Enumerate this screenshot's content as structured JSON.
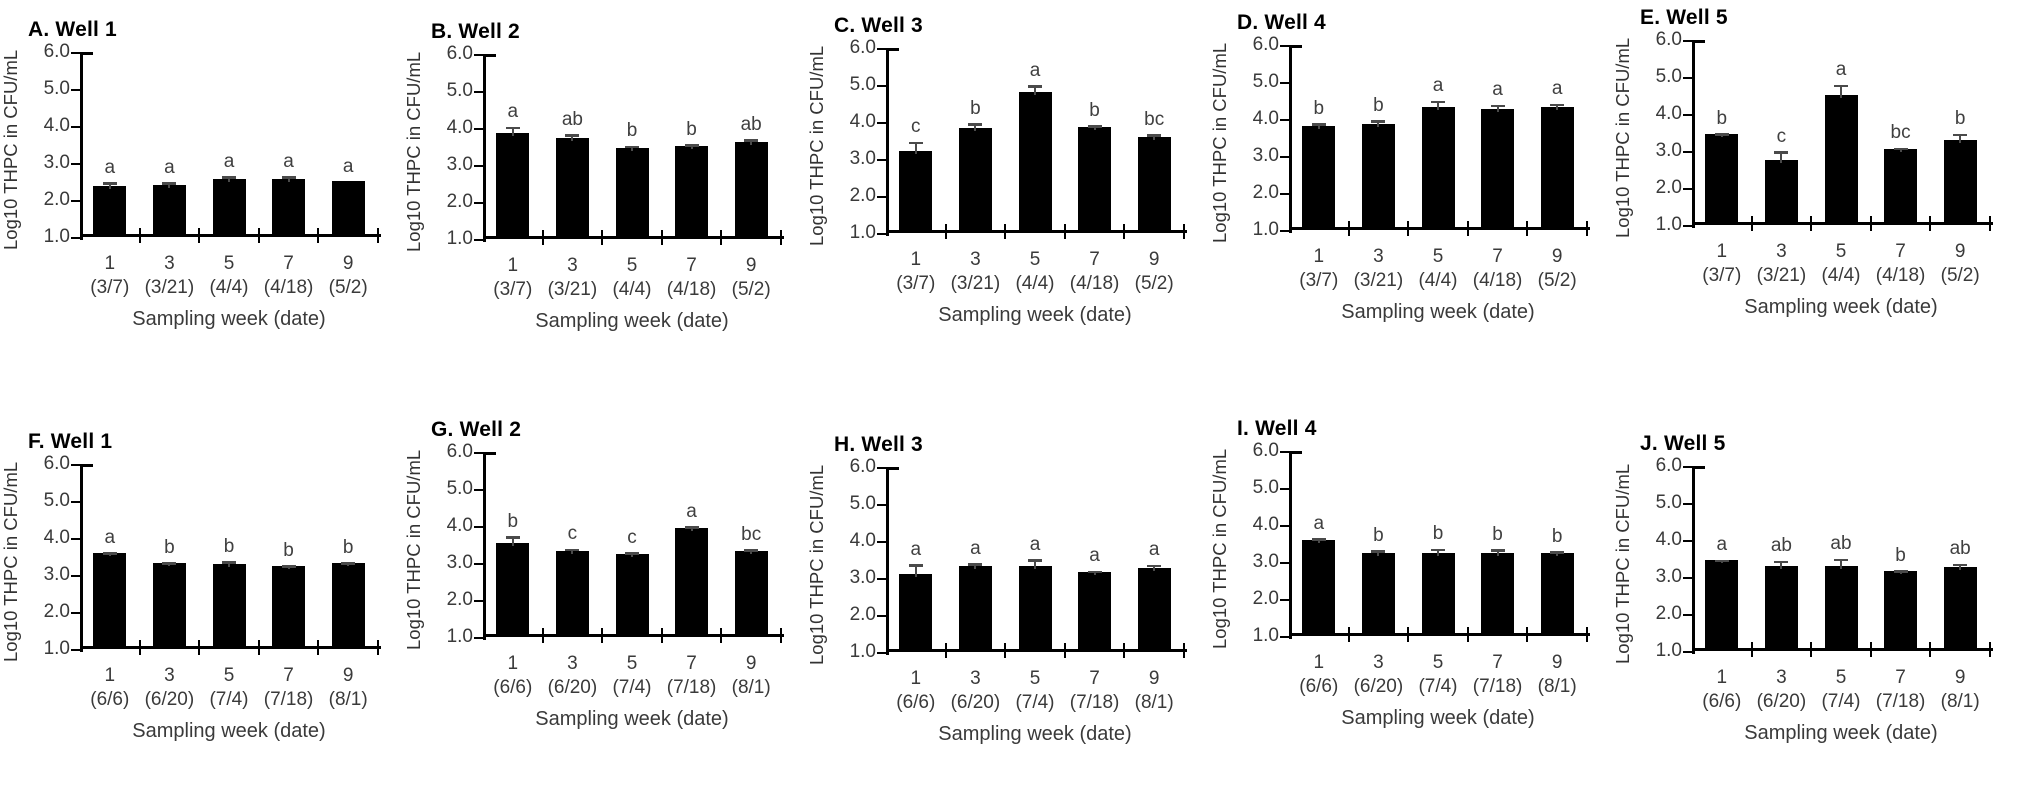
{
  "figure": {
    "description_colors": {
      "bar": "#000000",
      "error_bar": "#4a4a4a",
      "axis": "#000000",
      "text": "#3a3a3a",
      "title": "#000000",
      "background": "#ffffff"
    }
  },
  "axes": {
    "ylabel": "Log10 THPC in CFU/mL",
    "xlabel": "Sampling week (date)",
    "ytick_labels": [
      "6.0",
      "5.0",
      "4.0",
      "3.0",
      "2.0",
      "1.0"
    ],
    "ylim": [
      1.0,
      6.0
    ]
  },
  "chart_data": [
    {
      "panel": "A",
      "type": "bar",
      "title": "A. Well 1",
      "categories": [
        "1",
        "3",
        "5",
        "7",
        "9"
      ],
      "date_labels": [
        "(3/7)",
        "(3/21)",
        "(4/4)",
        "(4/18)",
        "(5/2)"
      ],
      "values": [
        2.32,
        2.36,
        2.52,
        2.52,
        2.45
      ],
      "errors": [
        0.12,
        0.08,
        0.08,
        0.08,
        0
      ],
      "sig_letters": [
        "a",
        "a",
        "a",
        "a",
        "a"
      ],
      "ylabel": "Log10 THPC in CFU/mL",
      "xlabel": "Sampling week (date)",
      "ytick_labels": [
        "6.0",
        "5.0",
        "4.0",
        "3.0",
        "2.0",
        "1.0"
      ],
      "ylim": [
        1.0,
        6.0
      ]
    },
    {
      "panel": "B",
      "type": "bar",
      "title": "B. Well 2",
      "categories": [
        "1",
        "3",
        "5",
        "7",
        "9"
      ],
      "date_labels": [
        "(3/7)",
        "(3/21)",
        "(4/4)",
        "(4/18)",
        "(5/2)"
      ],
      "values": [
        3.8,
        3.67,
        3.4,
        3.45,
        3.58
      ],
      "errors": [
        0.2,
        0.12,
        0.08,
        0.07,
        0.08
      ],
      "sig_letters": [
        "a",
        "ab",
        "b",
        "b",
        "ab"
      ],
      "ylabel": "Log10 THPC in CFU/mL",
      "xlabel": "Sampling week (date)",
      "ytick_labels": [
        "6.0",
        "5.0",
        "4.0",
        "3.0",
        "2.0",
        "1.0"
      ],
      "ylim": [
        1.0,
        6.0
      ]
    },
    {
      "panel": "C",
      "type": "bar",
      "title": "C. Well 3",
      "categories": [
        "1",
        "3",
        "5",
        "7",
        "9"
      ],
      "date_labels": [
        "(3/7)",
        "(3/21)",
        "(4/4)",
        "(4/18)",
        "(5/2)"
      ],
      "values": [
        3.17,
        3.78,
        4.75,
        3.82,
        3.55
      ],
      "errors": [
        0.25,
        0.15,
        0.2,
        0.05,
        0.08
      ],
      "sig_letters": [
        "c",
        "b",
        "a",
        "b",
        "bc"
      ],
      "ylabel": "Log10 THPC in CFU/mL",
      "xlabel": "Sampling week (date)",
      "ytick_labels": [
        "6.0",
        "5.0",
        "4.0",
        "3.0",
        "2.0",
        "1.0"
      ],
      "ylim": [
        1.0,
        6.0
      ]
    },
    {
      "panel": "D",
      "type": "bar",
      "title": "D. Well 4",
      "categories": [
        "1",
        "3",
        "5",
        "7",
        "9"
      ],
      "date_labels": [
        "(3/7)",
        "(3/21)",
        "(4/4)",
        "(4/18)",
        "(5/2)"
      ],
      "values": [
        3.75,
        3.82,
        4.27,
        4.23,
        4.27
      ],
      "errors": [
        0.1,
        0.1,
        0.18,
        0.12,
        0.1
      ],
      "sig_letters": [
        "b",
        "b",
        "a",
        "a",
        "a"
      ],
      "ylabel": "Log10 THPC in CFU/mL",
      "xlabel": "Sampling week (date)",
      "ytick_labels": [
        "6.0",
        "5.0",
        "4.0",
        "3.0",
        "2.0",
        "1.0"
      ],
      "ylim": [
        1.0,
        6.0
      ]
    },
    {
      "panel": "E",
      "type": "bar",
      "title": "E. Well 5",
      "categories": [
        "1",
        "3",
        "5",
        "7",
        "9"
      ],
      "date_labels": [
        "(3/7)",
        "(3/21)",
        "(4/4)",
        "(4/18)",
        "(5/2)"
      ],
      "values": [
        3.4,
        2.7,
        4.45,
        3.0,
        3.25
      ],
      "errors": [
        0.04,
        0.25,
        0.3,
        0.05,
        0.18
      ],
      "sig_letters": [
        "b",
        "c",
        "a",
        "bc",
        "b"
      ],
      "ylabel": "Log10 THPC in CFU/mL",
      "xlabel": "Sampling week (date)",
      "ytick_labels": [
        "6.0",
        "5.0",
        "4.0",
        "3.0",
        "2.0",
        "1.0"
      ],
      "ylim": [
        1.0,
        6.0
      ]
    },
    {
      "panel": "F",
      "type": "bar",
      "title": "F. Well 1",
      "categories": [
        "1",
        "3",
        "5",
        "7",
        "9"
      ],
      "date_labels": [
        "(6/6)",
        "(6/20)",
        "(7/4)",
        "(7/18)",
        "(8/1)"
      ],
      "values": [
        3.55,
        3.27,
        3.25,
        3.18,
        3.27
      ],
      "errors": [
        0.03,
        0.04,
        0.08,
        0.04,
        0.04
      ],
      "sig_letters": [
        "a",
        "b",
        "b",
        "b",
        "b"
      ],
      "ylabel": "Log10 THPC in CFU/mL",
      "xlabel": "Sampling week (date)",
      "ytick_labels": [
        "6.0",
        "5.0",
        "4.0",
        "3.0",
        "2.0",
        "1.0"
      ],
      "ylim": [
        1.0,
        6.0
      ]
    },
    {
      "panel": "G",
      "type": "bar",
      "title": "G. Well 2",
      "categories": [
        "1",
        "3",
        "5",
        "7",
        "9"
      ],
      "date_labels": [
        "(6/6)",
        "(6/20)",
        "(7/4)",
        "(7/18)",
        "(8/1)"
      ],
      "values": [
        3.5,
        3.28,
        3.2,
        3.88,
        3.28
      ],
      "errors": [
        0.18,
        0.07,
        0.05,
        0.07,
        0.05
      ],
      "sig_letters": [
        "b",
        "c",
        "c",
        "a",
        "bc"
      ],
      "ylabel": "Log10 THPC in CFU/mL",
      "xlabel": "Sampling  week (date)",
      "ytick_labels": [
        "6.0",
        "5.0",
        "4.0",
        "3.0",
        "2.0",
        "1.0"
      ],
      "ylim": [
        1.0,
        6.0
      ]
    },
    {
      "panel": "H",
      "type": "bar",
      "title": "H. Well 3",
      "categories": [
        "1",
        "3",
        "5",
        "7",
        "9"
      ],
      "date_labels": [
        "(6/6)",
        "(6/20)",
        "(7/4)",
        "(7/18)",
        "(8/1)"
      ],
      "values": [
        3.05,
        3.28,
        3.28,
        3.12,
        3.22
      ],
      "errors": [
        0.28,
        0.08,
        0.18,
        0.04,
        0.1
      ],
      "sig_letters": [
        "a",
        "a",
        "a",
        "a",
        "a"
      ],
      "ylabel": "Log10 THPC in CFU/mL",
      "xlabel": "Sampling week (date)",
      "ytick_labels": [
        "6.0",
        "5.0",
        "4.0",
        "3.0",
        "2.0",
        "1.0"
      ],
      "ylim": [
        1.0,
        6.0
      ]
    },
    {
      "panel": "I",
      "type": "bar",
      "title": "I. Well 4",
      "categories": [
        "1",
        "3",
        "5",
        "7",
        "9"
      ],
      "date_labels": [
        "(6/6)",
        "(6/20)",
        "(7/4)",
        "(7/18)",
        "(8/1)"
      ],
      "values": [
        3.55,
        3.2,
        3.2,
        3.2,
        3.2
      ],
      "errors": [
        0.05,
        0.08,
        0.12,
        0.1,
        0.05
      ],
      "sig_letters": [
        "a",
        "b",
        "b",
        "b",
        "b"
      ],
      "ylabel": "Log10 THPC in CFU/mL",
      "xlabel": "Sampling week (date)",
      "ytick_labels": [
        "6.0",
        "5.0",
        "4.0",
        "3.0",
        "2.0",
        "1.0"
      ],
      "ylim": [
        1.0,
        6.0
      ]
    },
    {
      "panel": "J",
      "type": "bar",
      "title": "J. Well 5",
      "categories": [
        "1",
        "3",
        "5",
        "7",
        "9"
      ],
      "date_labels": [
        "(6/6)",
        "(6/20)",
        "(7/4)",
        "(7/18)",
        "(8/1)"
      ],
      "values": [
        3.4,
        3.25,
        3.25,
        3.12,
        3.22
      ],
      "errors": [
        0.03,
        0.15,
        0.2,
        0.02,
        0.1
      ],
      "sig_letters": [
        "a",
        "ab",
        "ab",
        "b",
        "ab"
      ],
      "ylabel": "Log10 THPC in CFU/mL",
      "xlabel": "Sampling  week (date)",
      "ytick_labels": [
        "6.0",
        "5.0",
        "4.0",
        "3.0",
        "2.0",
        "1.0"
      ],
      "ylim": [
        1.0,
        6.0
      ]
    }
  ]
}
